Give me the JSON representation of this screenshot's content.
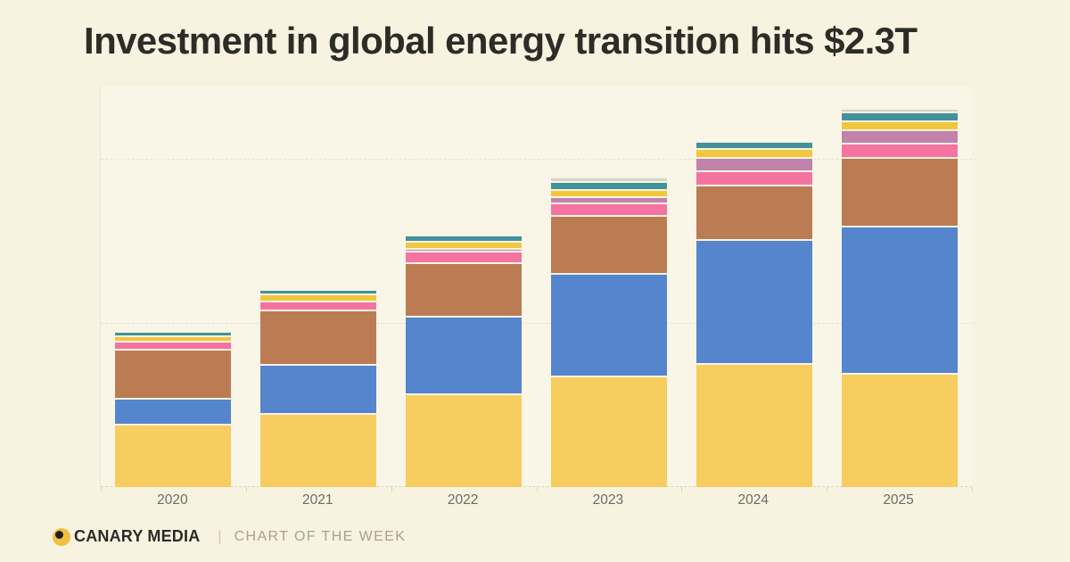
{
  "title": "Investment in global energy transition hits $2.3T",
  "footer": {
    "brand": "CANARY MEDIA",
    "divider": "|",
    "series_label": "CHART OF THE WEEK"
  },
  "colors": {
    "background": "#f8f3e1",
    "title_text": "#2e2c27",
    "axis_label_text": "#6c6b66",
    "gridline": "#e7e3d2",
    "logo_yellow": "#efc041",
    "footer_gray": "#a8a193"
  },
  "chart_data": {
    "type": "bar",
    "stacked": true,
    "title": "Investment in global energy transition hits $2.3T",
    "categories": [
      "2020",
      "2021",
      "2022",
      "2023",
      "2024",
      "2025"
    ],
    "unit": "USD billions (estimated from bar heights; $2.3T total in 2025)",
    "series": [
      {
        "name": "yellow-segment",
        "color": "#f6cd5e",
        "values": [
          385,
          452,
          574,
          683,
          759,
          700
        ]
      },
      {
        "name": "blue-segment",
        "color": "#5585cc",
        "values": [
          160,
          301,
          471,
          626,
          754,
          898
        ]
      },
      {
        "name": "brown-segment",
        "color": "#bc7c53",
        "values": [
          300,
          334,
          326,
          353,
          337,
          417
        ]
      },
      {
        "name": "pink-segment",
        "color": "#f573a1",
        "values": [
          50,
          53,
          74,
          74,
          86,
          87
        ]
      },
      {
        "name": "mauve-segment",
        "color": "#c182ab",
        "values": [
          0,
          0,
          17,
          39,
          79,
          81
        ]
      },
      {
        "name": "gold-segment",
        "color": "#f0c73e",
        "values": [
          30,
          41,
          43,
          44,
          55,
          55
        ]
      },
      {
        "name": "teal-segment",
        "color": "#42929b",
        "values": [
          30,
          30,
          39,
          52,
          47,
          55
        ]
      },
      {
        "name": "gray-segment",
        "color": "#d3d4ca",
        "values": [
          0,
          0,
          0,
          25,
          0,
          25
        ]
      }
    ],
    "totals_approx": [
      955,
      1211,
      1544,
      1896,
      2117,
      2318
    ],
    "ylim": [
      0,
      2447
    ],
    "gridline_values": [
      1000,
      2000
    ],
    "legend": "none",
    "y_axis_tick_labels": "none",
    "grid": "horizontal dashed"
  }
}
